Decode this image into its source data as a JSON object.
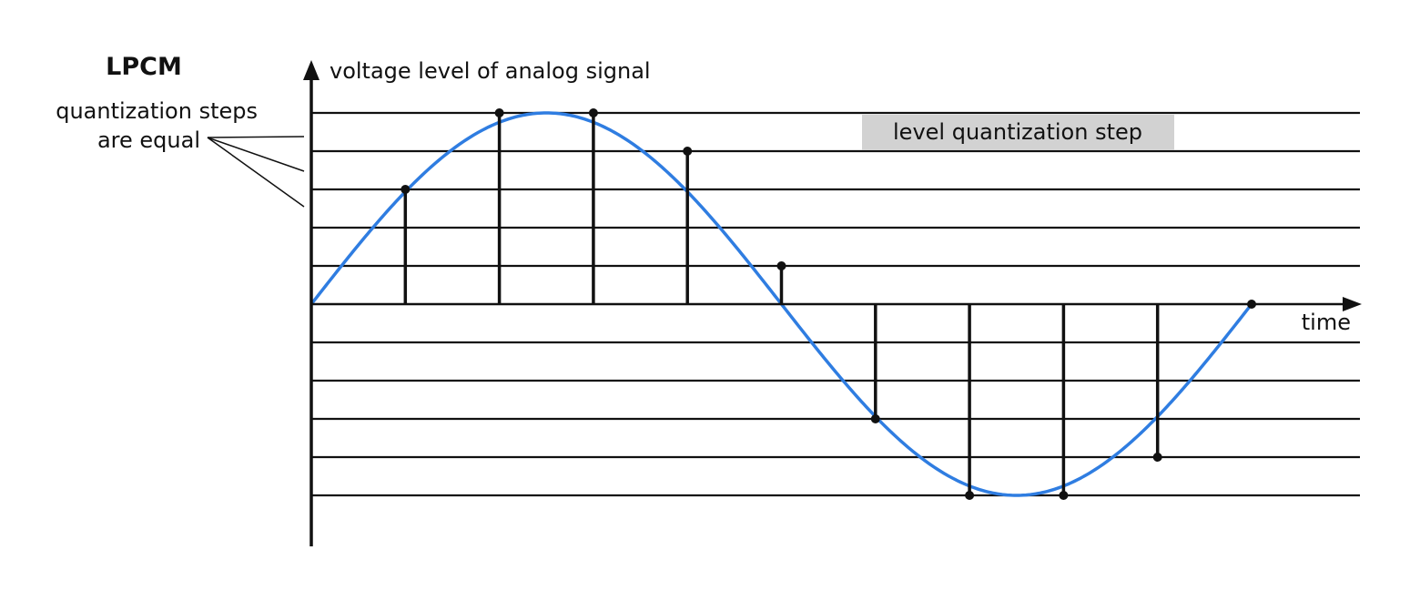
{
  "title": "LPCM",
  "note": {
    "line1": "quantization steps",
    "line2": "are equal"
  },
  "y_axis_label": "voltage level of analog signal",
  "x_axis_label": "time",
  "step_box_label": "level quantization step",
  "colors": {
    "signal": "#2f7de1",
    "lines": "#111111",
    "step_box": "#d2d2d2"
  },
  "levels": [
    5,
    4,
    3,
    2,
    1,
    0,
    -1,
    -2,
    -3,
    -4,
    -5
  ],
  "samples": [
    {
      "t": 0,
      "level": 0
    },
    {
      "t": 1,
      "level": 3
    },
    {
      "t": 2,
      "level": 5
    },
    {
      "t": 3,
      "level": 5
    },
    {
      "t": 4,
      "level": 4
    },
    {
      "t": 5,
      "level": 1
    },
    {
      "t": 6,
      "level": -3
    },
    {
      "t": 7,
      "level": -5
    },
    {
      "t": 8,
      "level": -5
    },
    {
      "t": 9,
      "level": -4
    },
    {
      "t": 10,
      "level": 0
    }
  ]
}
